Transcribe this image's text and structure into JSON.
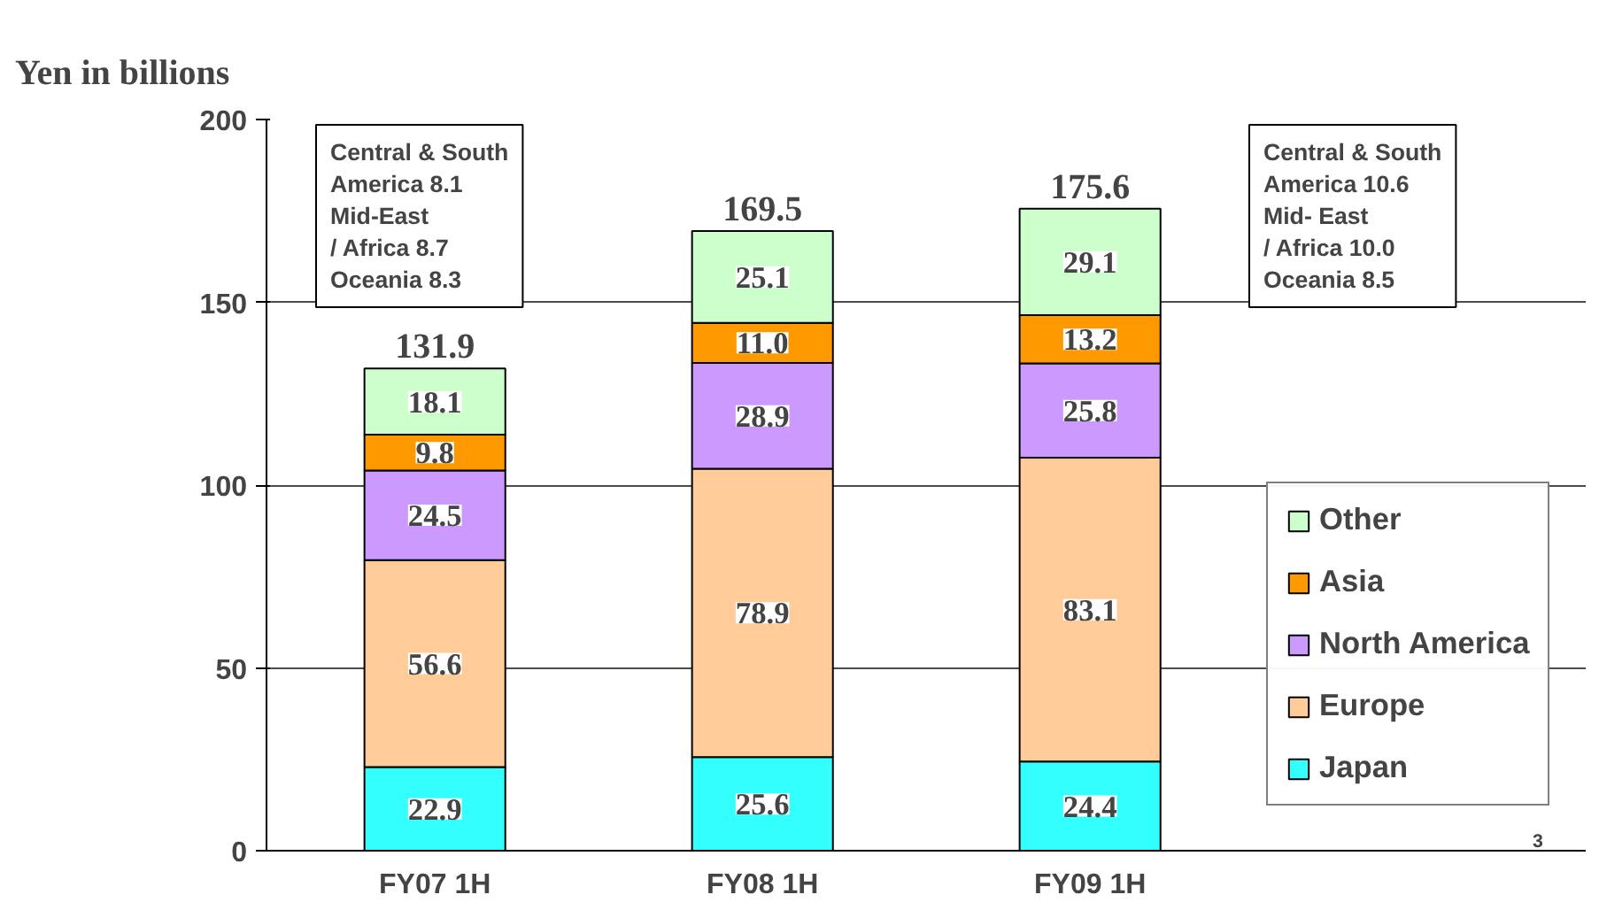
{
  "chart_data": {
    "type": "bar",
    "stacked": true,
    "ylabel": "Yen in billions",
    "categories": [
      "FY07 1H",
      "FY08 1H",
      "FY09 1H"
    ],
    "series": [
      {
        "name": "Japan",
        "color": "#33ffff",
        "values": [
          22.9,
          25.6,
          24.4
        ],
        "value_labels": [
          "22.9",
          "25.6",
          "24.4"
        ]
      },
      {
        "name": "Europe",
        "color": "#ffcc99",
        "values": [
          56.6,
          78.9,
          83.1
        ],
        "value_labels": [
          "56.6",
          "78.9",
          "83.1"
        ]
      },
      {
        "name": "North America",
        "color": "#cc99ff",
        "values": [
          24.5,
          28.9,
          25.8
        ],
        "value_labels": [
          "24.5",
          "28.9",
          "25.8"
        ]
      },
      {
        "name": "Asia",
        "color": "#ff9900",
        "values": [
          9.8,
          11.0,
          13.2
        ],
        "value_labels": [
          "9.8",
          "11.0",
          "13.2"
        ]
      },
      {
        "name": "Other",
        "color": "#ccffcc",
        "values": [
          18.1,
          25.1,
          29.1
        ],
        "value_labels": [
          "18.1",
          "25.1",
          "29.1"
        ]
      }
    ],
    "totals": [
      "131.9",
      "169.5",
      "175.6"
    ],
    "ylim": [
      0,
      200
    ],
    "yticks": [
      0,
      50,
      100,
      150,
      200
    ],
    "grid": "y",
    "legend": "right",
    "annotations": [
      "Central & South\nAmerica 8.1\nMid-East\n/ Africa 8.7\nOceania 8.3",
      "Central & South\nAmerica 10.6\nMid- East\n/ Africa 10.0\nOceania 8.5",
      "3"
    ]
  }
}
